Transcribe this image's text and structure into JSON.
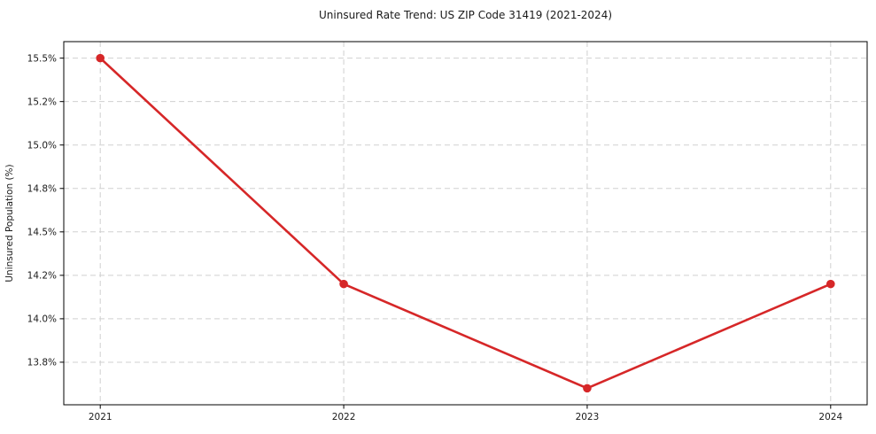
{
  "figure": {
    "background": "#ffffff"
  },
  "chart_data": {
    "type": "line",
    "title": "Uninsured Rate Trend: US ZIP Code 31419 (2021-2024)",
    "xlabel": "",
    "ylabel": "Uninsured Population (%)",
    "categories": [
      "2021",
      "2022",
      "2023",
      "2024"
    ],
    "series": [
      {
        "name": "Uninsured rate",
        "values": [
          15.5,
          14.2,
          13.6,
          14.2
        ]
      }
    ],
    "value_format": "percent",
    "ylim": [
      13.505,
      15.595
    ],
    "yticks": {
      "values": [
        15.5,
        15.25,
        15.0,
        14.75,
        14.5,
        14.25,
        14.0,
        13.75
      ],
      "labels": [
        "15.5%",
        "15.2%",
        "15.0%",
        "14.8%",
        "14.5%",
        "14.2%",
        "14.0%",
        "13.8%"
      ]
    },
    "xticks": {
      "labels": [
        "2021",
        "2022",
        "2023",
        "2024"
      ]
    },
    "grid": {
      "show": true,
      "style": "dashed"
    },
    "legend_position": "none",
    "marker": "circle",
    "colors": {
      "line": "#d62728",
      "marker": "#d62728",
      "grid": "#d0d0d0",
      "spine": "#000000",
      "text": "#1a1a1a"
    }
  }
}
